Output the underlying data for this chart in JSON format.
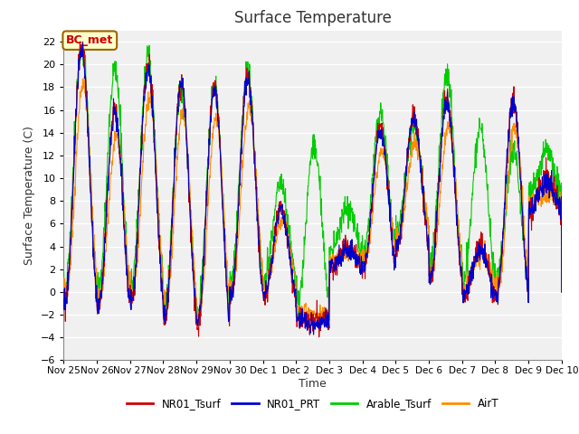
{
  "title": "Surface Temperature",
  "ylabel": "Surface Temperature (C)",
  "xlabel": "Time",
  "ylim": [
    -6,
    23
  ],
  "yticks": [
    -6,
    -4,
    -2,
    0,
    2,
    4,
    6,
    8,
    10,
    12,
    14,
    16,
    18,
    20,
    22
  ],
  "colors": {
    "NR01_Tsurf": "#cc0000",
    "NR01_PRT": "#0000cc",
    "Arable_Tsurf": "#00cc00",
    "AirT": "#ff8c00"
  },
  "annotation_text": "BC_met",
  "annotation_color": "#cc0000",
  "annotation_bg": "#ffffcc",
  "annotation_edge": "#996600",
  "bg_color": "#e8e8e8",
  "plot_bg": "#f0f0f0",
  "grid_color": "#ffffff",
  "xtick_labels": [
    "Nov 25",
    "Nov 26",
    "Nov 27",
    "Nov 28",
    "Nov 29",
    "Nov 30",
    "Dec 1",
    "Dec 2",
    "Dec 3",
    "Dec 4",
    "Dec 5",
    "Dec 6",
    "Dec 7",
    "Dec 8",
    "Dec 9",
    "Dec 10"
  ],
  "n_days": 15,
  "pts_per_day": 96,
  "day_peaks_NR01": [
    21.5,
    16.0,
    20.0,
    18.5,
    18.0,
    19.0,
    7.5,
    -2.5,
    4.0,
    14.5,
    15.5,
    17.0,
    4.0,
    17.0,
    10.0
  ],
  "day_peaks_arable": [
    22.0,
    19.5,
    20.5,
    18.0,
    18.0,
    19.5,
    9.5,
    13.0,
    7.5,
    15.5,
    14.5,
    19.0,
    14.5,
    12.5,
    12.5
  ],
  "day_troughs": [
    -1.0,
    -1.5,
    -1.0,
    -2.5,
    -3.0,
    -0.5,
    -0.5,
    -2.5,
    2.0,
    2.0,
    4.0,
    1.0,
    -0.5,
    -0.5,
    7.0
  ]
}
